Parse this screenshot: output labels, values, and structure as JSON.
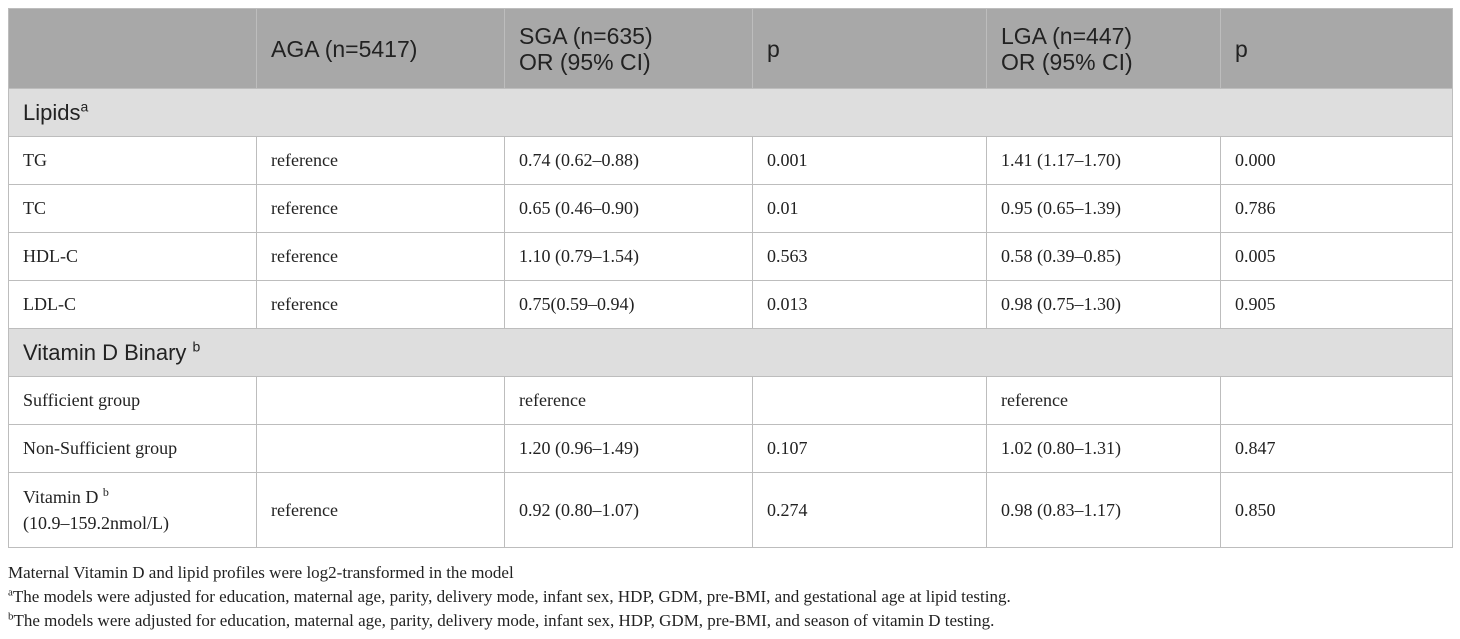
{
  "table": {
    "headers": [
      {
        "line1": "",
        "line2": ""
      },
      {
        "line1": "AGA (n=5417)",
        "line2": ""
      },
      {
        "line1": "SGA (n=635)",
        "line2": "OR (95% CI)"
      },
      {
        "line1": "p",
        "line2": ""
      },
      {
        "line1": "LGA (n=447)",
        "line2": "OR (95% CI)"
      },
      {
        "line1": "p",
        "line2": ""
      }
    ],
    "section_lipids": {
      "label": "Lipids",
      "marker": "a"
    },
    "lipid_rows": [
      [
        "TG",
        "reference",
        "0.74 (0.62–0.88)",
        "0.001",
        "1.41 (1.17–1.70)",
        "0.000"
      ],
      [
        "TC",
        "reference",
        "0.65 (0.46–0.90)",
        "0.01",
        "0.95 (0.65–1.39)",
        "0.786"
      ],
      [
        "HDL-C",
        "reference",
        "1.10 (0.79–1.54)",
        "0.563",
        "0.58 (0.39–0.85)",
        "0.005"
      ],
      [
        "LDL-C",
        "reference",
        "0.75(0.59–0.94)",
        "0.013",
        "0.98 (0.75–1.30)",
        "0.905"
      ]
    ],
    "section_vitd": {
      "label": "Vitamin D Binary ",
      "marker": "b"
    },
    "vitd_rows": [
      [
        "Sufficient group",
        "",
        "reference",
        "",
        "reference",
        ""
      ],
      [
        "Non-Sufficient group",
        "",
        "1.20 (0.96–1.49)",
        "0.107",
        "1.02 (0.80–1.31)",
        "0.847"
      ]
    ],
    "vitd_continuous_row": {
      "label_line1": "Vitamin D ",
      "label_marker": "b",
      "label_line2": "(10.9–159.2nmol/L)",
      "cells": [
        "reference",
        "0.92 (0.80–1.07)",
        "0.274",
        "0.98 (0.83–1.17)",
        "0.850"
      ]
    }
  },
  "footnotes": {
    "note0": "Maternal Vitamin D and lipid profiles were log2-transformed in the model",
    "note_a_marker": "a",
    "note_a": "The models were adjusted for education, maternal age, parity, delivery mode, infant sex, HDP, GDM, pre-BMI, and gestational age at lipid testing.",
    "note_b_marker": "b",
    "note_b": "The models were adjusted for education, maternal age, parity, delivery mode, infant sex, HDP, GDM, pre-BMI, and season of vitamin D testing."
  }
}
